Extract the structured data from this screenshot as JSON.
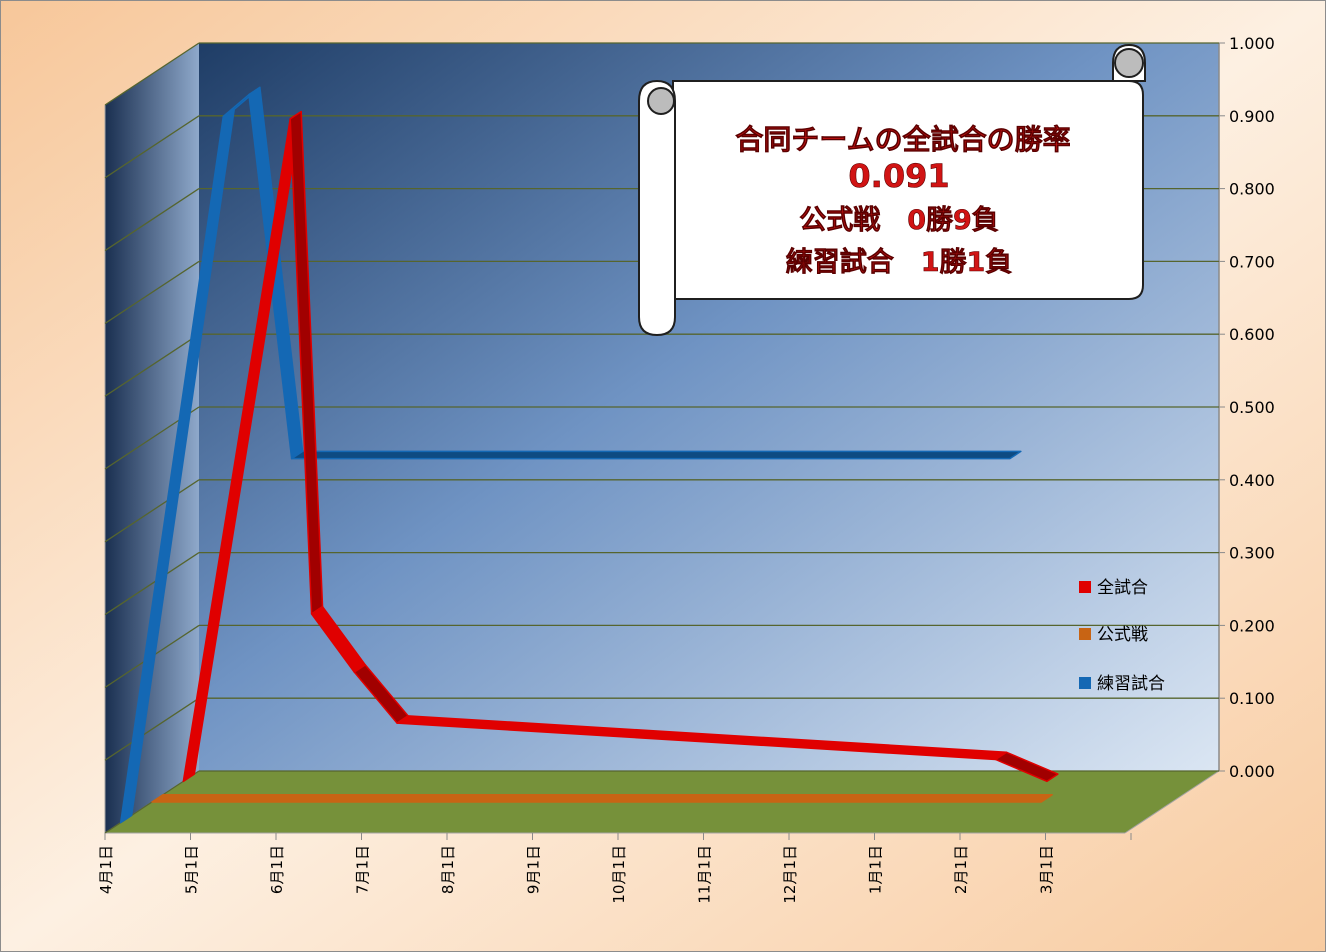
{
  "chart_data": {
    "type": "line",
    "style": "3d-ribbon",
    "categories": [
      "4月1日",
      "5月1日",
      "6月1日",
      "7月1日",
      "8月1日",
      "9月1日",
      "10月1日",
      "11月1日",
      "12月1日",
      "1月1日",
      "2月1日",
      "3月1日"
    ],
    "y_ticks": [
      "0.000",
      "0.100",
      "0.200",
      "0.300",
      "0.400",
      "0.500",
      "0.600",
      "0.700",
      "0.800",
      "0.900",
      "1.000"
    ],
    "ylim": [
      0,
      1
    ],
    "grid": true,
    "legend_position": "right",
    "series": [
      {
        "name": "全試合",
        "color": "#e00000",
        "points": [
          [
            0,
            0.0
          ],
          [
            1.25,
            0.91
          ],
          [
            1.5,
            0.23
          ],
          [
            2.0,
            0.15
          ],
          [
            2.5,
            0.08
          ],
          [
            9.5,
            0.03
          ],
          [
            10.1,
            0.0
          ]
        ]
      },
      {
        "name": "公式戦",
        "color": "#c86414",
        "points": [
          [
            0,
            0.0
          ],
          [
            10.4,
            0.0
          ]
        ]
      },
      {
        "name": "練習試合",
        "color": "#1468b4",
        "points": [
          [
            0,
            0.0
          ],
          [
            1.2,
            0.97
          ],
          [
            1.5,
            1.0
          ],
          [
            2.0,
            0.5
          ],
          [
            10.4,
            0.5
          ]
        ]
      }
    ],
    "annotation": {
      "title": "合同チームの全試合の勝率",
      "value": "0.091",
      "line1": "公式戦　0勝9負",
      "line2": "練習試合　1勝1負"
    }
  }
}
